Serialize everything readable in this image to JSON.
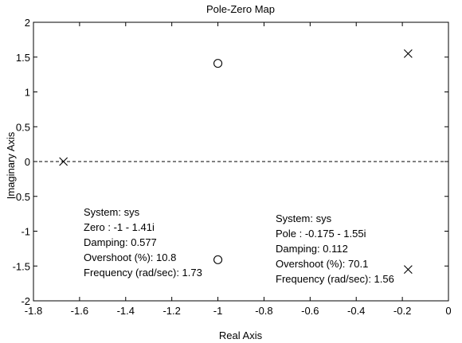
{
  "chart_data": {
    "type": "scatter",
    "title": "Pole-Zero Map",
    "xlabel": "Real Axis",
    "ylabel": "Imaginary Axis",
    "xlim": [
      -1.8,
      0
    ],
    "ylim": [
      -2,
      2
    ],
    "xticks": [
      -1.8,
      -1.6,
      -1.4,
      -1.2,
      -1,
      -0.8,
      -0.6,
      -0.4,
      -0.2,
      0
    ],
    "xtick_labels": [
      "-1.8",
      "-1.6",
      "-1.4",
      "-1.2",
      "-1",
      "-0.8",
      "-0.6",
      "-0.4",
      "-0.2",
      "0"
    ],
    "yticks": [
      2,
      1.5,
      1,
      0.5,
      0,
      -0.5,
      -1,
      -1.5,
      -2
    ],
    "ytick_labels": [
      "2",
      "1.5",
      "1",
      "0.5",
      "0",
      "-0.5",
      "-1",
      "-1.5",
      "-2"
    ],
    "grid": false,
    "reference_line": {
      "y": 0,
      "style": "dashed"
    },
    "series": [
      {
        "marker": "x",
        "points": [
          [
            -1.67,
            0
          ],
          [
            -0.175,
            1.55
          ]
        ]
      },
      {
        "marker": "o",
        "points": [
          [
            -1,
            1.41
          ]
        ]
      }
    ],
    "annotations": {
      "zero_box": {
        "lines": [
          "System: sys",
          "Zero : -1 - 1.41i",
          "Damping: 0.577",
          "Overshoot (%): 10.8",
          "Frequency (rad/sec): 1.73"
        ],
        "marker": "o",
        "marker_at": [
          -1,
          -1.41
        ]
      },
      "pole_box": {
        "lines": [
          "System: sys",
          "Pole : -0.175 - 1.55i",
          "Damping: 0.112",
          "Overshoot (%): 70.1",
          "Frequency (rad/sec): 1.56"
        ],
        "marker": "x",
        "marker_at": [
          -0.175,
          -1.55
        ]
      }
    }
  }
}
